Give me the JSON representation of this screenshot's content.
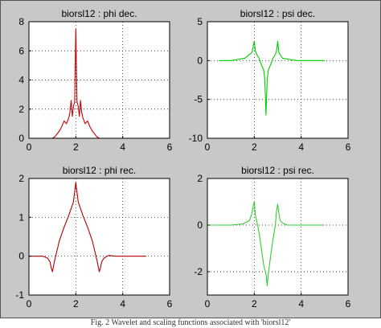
{
  "chart_data": [
    {
      "type": "line",
      "title": "biorsl12 : phi dec.",
      "color": "#cc0000",
      "xlim": [
        0,
        6
      ],
      "ylim": [
        0,
        8
      ],
      "xticks": [
        0,
        2,
        4,
        6
      ],
      "yticks": [
        0,
        2,
        4,
        6,
        8
      ],
      "grid": true,
      "series": [
        {
          "x": [
            0,
            1.0,
            1.1,
            1.2,
            1.3,
            1.4,
            1.5,
            1.6,
            1.7,
            1.75,
            1.8,
            1.85,
            1.9,
            1.95,
            2.0,
            2.05,
            2.1,
            2.15,
            2.2,
            2.25,
            2.3,
            2.4,
            2.5,
            2.6,
            2.7,
            2.8,
            2.9,
            3.0,
            4.0,
            5.0
          ],
          "y": [
            0,
            0,
            0.1,
            0.3,
            0.5,
            0.8,
            1.2,
            1.0,
            1.4,
            1.8,
            2.6,
            1.5,
            2.2,
            2.5,
            7.5,
            2.5,
            2.2,
            1.5,
            2.6,
            1.8,
            1.4,
            1.0,
            1.2,
            0.8,
            0.5,
            0.3,
            0.1,
            0,
            0,
            0
          ]
        }
      ]
    },
    {
      "type": "line",
      "title": "biorsl12 : psi dec.",
      "color": "#00cc00",
      "xlim": [
        0,
        6
      ],
      "ylim": [
        -10,
        5
      ],
      "xticks": [
        0,
        2,
        4,
        6
      ],
      "yticks": [
        -10,
        -5,
        0,
        5
      ],
      "grid": true,
      "series": [
        {
          "x": [
            0.5,
            1.0,
            1.2,
            1.4,
            1.6,
            1.8,
            1.9,
            2.0,
            2.05,
            2.1,
            2.2,
            2.3,
            2.4,
            2.45,
            2.5,
            2.55,
            2.6,
            2.7,
            2.8,
            2.9,
            2.95,
            3.0,
            3.05,
            3.1,
            3.2,
            3.4,
            3.6,
            3.8,
            4.0,
            5.0
          ],
          "y": [
            0,
            0,
            0.1,
            0.2,
            0.3,
            0.8,
            1.0,
            2.5,
            1.2,
            0.8,
            0.3,
            -0.5,
            -1.2,
            -2.5,
            -7.0,
            -2.5,
            -1.2,
            -0.5,
            0.3,
            0.8,
            1.2,
            2.5,
            1.0,
            0.8,
            0.3,
            0.2,
            0.1,
            0,
            0,
            0
          ]
        }
      ]
    },
    {
      "type": "line",
      "title": "biorsl12 : phi rec.",
      "color": "#b30000",
      "xlim": [
        0,
        6
      ],
      "ylim": [
        -1,
        2
      ],
      "xticks": [
        0,
        2,
        4,
        6
      ],
      "yticks": [
        -1,
        0,
        1,
        2
      ],
      "grid": true,
      "series": [
        {
          "x": [
            0,
            0.3,
            0.6,
            0.8,
            0.9,
            0.95,
            1.0,
            1.1,
            1.3,
            1.5,
            1.7,
            1.9,
            2.0,
            2.1,
            2.3,
            2.5,
            2.7,
            2.9,
            3.0,
            3.05,
            3.1,
            3.2,
            3.4,
            3.7,
            4.0,
            5.0
          ],
          "y": [
            0,
            0,
            0,
            -0.05,
            -0.15,
            -0.3,
            -0.4,
            -0.1,
            0.4,
            0.75,
            1.05,
            1.4,
            1.9,
            1.4,
            1.05,
            0.75,
            0.4,
            -0.1,
            -0.4,
            -0.3,
            -0.15,
            -0.05,
            0.02,
            0,
            0,
            0
          ]
        }
      ]
    },
    {
      "type": "line",
      "title": "biorsl12 : psi rec.",
      "color": "#33cc33",
      "xlim": [
        0,
        6
      ],
      "ylim": [
        -3,
        2
      ],
      "xticks": [
        0,
        2,
        4,
        6
      ],
      "yticks": [
        -2,
        0,
        2
      ],
      "grid": true,
      "series": [
        {
          "x": [
            0,
            1.0,
            1.5,
            1.8,
            1.9,
            1.95,
            2.0,
            2.05,
            2.1,
            2.2,
            2.3,
            2.4,
            2.5,
            2.55,
            2.6,
            2.7,
            2.8,
            2.9,
            2.95,
            3.0,
            3.05,
            3.1,
            3.2,
            3.4,
            4.0,
            5.0
          ],
          "y": [
            0,
            0,
            0.05,
            0.2,
            0.5,
            0.8,
            1.0,
            0.4,
            0.2,
            -0.3,
            -1.0,
            -1.7,
            -2.1,
            -2.6,
            -2.1,
            -1.3,
            -0.6,
            0,
            0.6,
            0.9,
            0.5,
            0.2,
            0.1,
            0,
            0,
            0
          ]
        }
      ]
    }
  ],
  "caption": "Fig. 2 Wavelet and scaling functions associated with 'biorsl12'"
}
